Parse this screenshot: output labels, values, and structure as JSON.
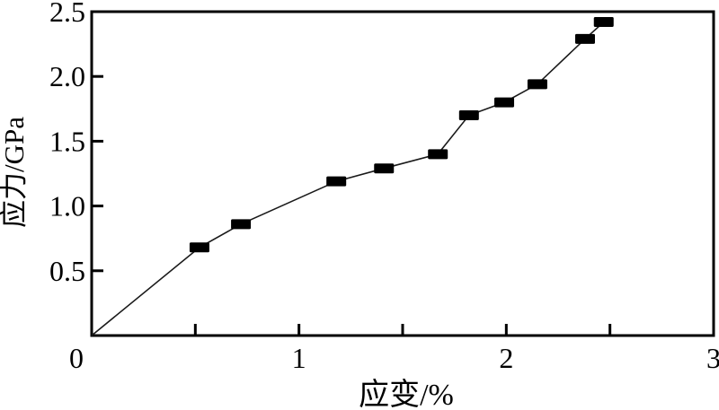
{
  "chart_data": {
    "type": "line",
    "title": "",
    "xlabel": "应变/%",
    "ylabel": "应力/GPa",
    "xlim": [
      0,
      3
    ],
    "ylim": [
      0,
      2.5
    ],
    "grid": false,
    "legend": null,
    "x_ticks": [
      0.5,
      1,
      1.5,
      2,
      2.5
    ],
    "x_tick_labels": [
      {
        "value": 1,
        "label": "1"
      },
      {
        "value": 2,
        "label": "2"
      },
      {
        "value": 3,
        "label": "3"
      }
    ],
    "y_ticks": [
      0.5,
      1,
      1.5,
      2,
      2.5
    ],
    "y_tick_labels": [
      {
        "value": 0.5,
        "label": "0.5"
      },
      {
        "value": 1,
        "label": "1.0"
      },
      {
        "value": 1.5,
        "label": "1.5"
      },
      {
        "value": 2,
        "label": "2.0"
      },
      {
        "value": 2.5,
        "label": "2.5"
      }
    ],
    "origin_label": "0",
    "series": [
      {
        "marker": "filled-rect",
        "markers_from_index": 1,
        "line_color": "#1a1a1a",
        "marker_color": "#000000",
        "points": [
          [
            0,
            0
          ],
          [
            0.52,
            0.68
          ],
          [
            0.72,
            0.86
          ],
          [
            1.18,
            1.19
          ],
          [
            1.41,
            1.29
          ],
          [
            1.67,
            1.4
          ],
          [
            1.82,
            1.7
          ],
          [
            1.99,
            1.8
          ],
          [
            2.15,
            1.94
          ],
          [
            2.38,
            2.29
          ],
          [
            2.47,
            2.42
          ]
        ]
      }
    ]
  },
  "colors": {
    "background": "#ffffff",
    "axis": "#000000",
    "text": "#000000",
    "line": "#1a1a1a",
    "marker": "#000000"
  }
}
